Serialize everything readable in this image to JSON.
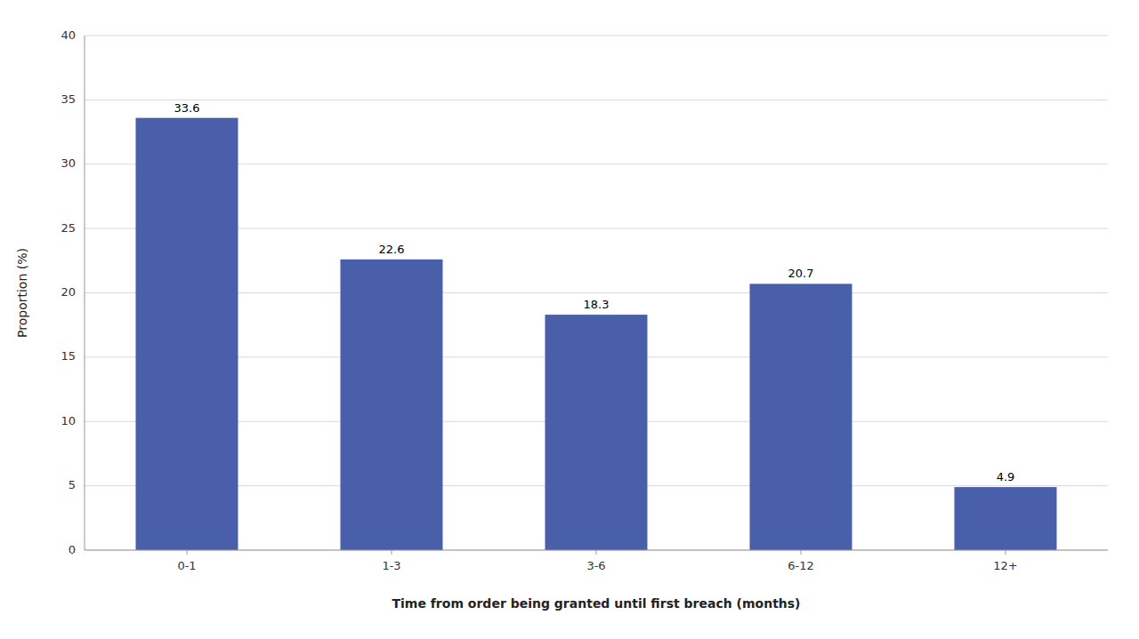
{
  "chart_data": {
    "type": "bar",
    "categories": [
      "0-1",
      "1-3",
      "3-6",
      "6-12",
      "12+"
    ],
    "values": [
      33.6,
      22.6,
      18.3,
      20.7,
      4.9
    ],
    "color": "#4a5faa",
    "xlabel": "Time from order being granted until first breach (months)",
    "ylabel": "Proportion (%)",
    "ylim": [
      0,
      40
    ],
    "yticks": [
      0,
      5,
      10,
      15,
      20,
      25,
      30,
      35,
      40
    ],
    "grid": true,
    "data_labels": true
  }
}
